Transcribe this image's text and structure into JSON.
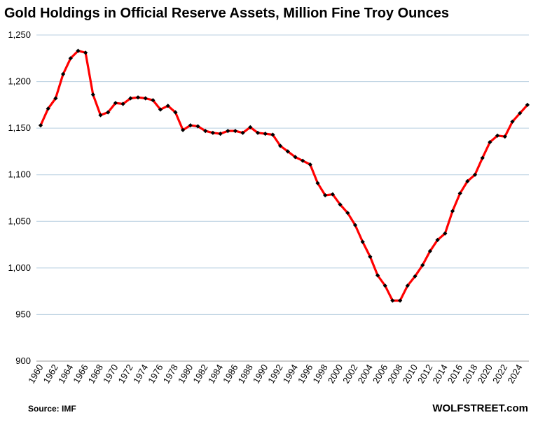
{
  "chart_data": {
    "type": "line",
    "title": "Gold Holdings in Official Reserve Assets, Million Fine Troy Ounces",
    "xlabel": "",
    "ylabel": "",
    "ylim": [
      900,
      1250
    ],
    "yticks": [
      900,
      950,
      1000,
      1050,
      1100,
      1150,
      1200,
      1250
    ],
    "ytick_labels": [
      "900",
      "950",
      "1,000",
      "1,050",
      "1,100",
      "1,150",
      "1,200",
      "1,250"
    ],
    "xtick_labels": [
      "1960",
      "1962",
      "1964",
      "1966",
      "1968",
      "1970",
      "1972",
      "1974",
      "1976",
      "1978",
      "1980",
      "1982",
      "1984",
      "1986",
      "1988",
      "1990",
      "1992",
      "1994",
      "1996",
      "1998",
      "2000",
      "2002",
      "2004",
      "2006",
      "2008",
      "2010",
      "2012",
      "2014",
      "2016",
      "2018",
      "2020",
      "2022",
      "2024"
    ],
    "grid": true,
    "series": [
      {
        "name": "Gold Holdings",
        "color": "#ff0000",
        "marker_color": "#000000",
        "x": [
          1960,
          1961,
          1962,
          1963,
          1964,
          1965,
          1966,
          1967,
          1968,
          1969,
          1970,
          1971,
          1972,
          1973,
          1974,
          1975,
          1976,
          1977,
          1978,
          1979,
          1980,
          1981,
          1982,
          1983,
          1984,
          1985,
          1986,
          1987,
          1988,
          1989,
          1990,
          1991,
          1992,
          1993,
          1994,
          1995,
          1996,
          1997,
          1998,
          1999,
          2000,
          2001,
          2002,
          2003,
          2004,
          2005,
          2006,
          2007,
          2008,
          2009,
          2010,
          2011,
          2012,
          2013,
          2014,
          2015,
          2016,
          2017,
          2018,
          2019,
          2020,
          2021,
          2022,
          2023,
          2024,
          2025
        ],
        "values": [
          1153,
          1171,
          1182,
          1208,
          1225,
          1233,
          1231,
          1186,
          1164,
          1167,
          1177,
          1176,
          1182,
          1183,
          1182,
          1180,
          1170,
          1174,
          1167,
          1148,
          1153,
          1152,
          1147,
          1145,
          1144,
          1147,
          1147,
          1145,
          1151,
          1145,
          1144,
          1143,
          1131,
          1125,
          1119,
          1115,
          1111,
          1091,
          1078,
          1079,
          1068,
          1059,
          1046,
          1028,
          1012,
          992,
          981,
          965,
          965,
          981,
          991,
          1003,
          1018,
          1030,
          1037,
          1061,
          1080,
          1093,
          1100,
          1118,
          1135,
          1142,
          1141,
          1157,
          1166,
          1175
        ]
      }
    ]
  },
  "footer": {
    "source": "Source: IMF",
    "brand": "WOLFSTREET.com"
  }
}
